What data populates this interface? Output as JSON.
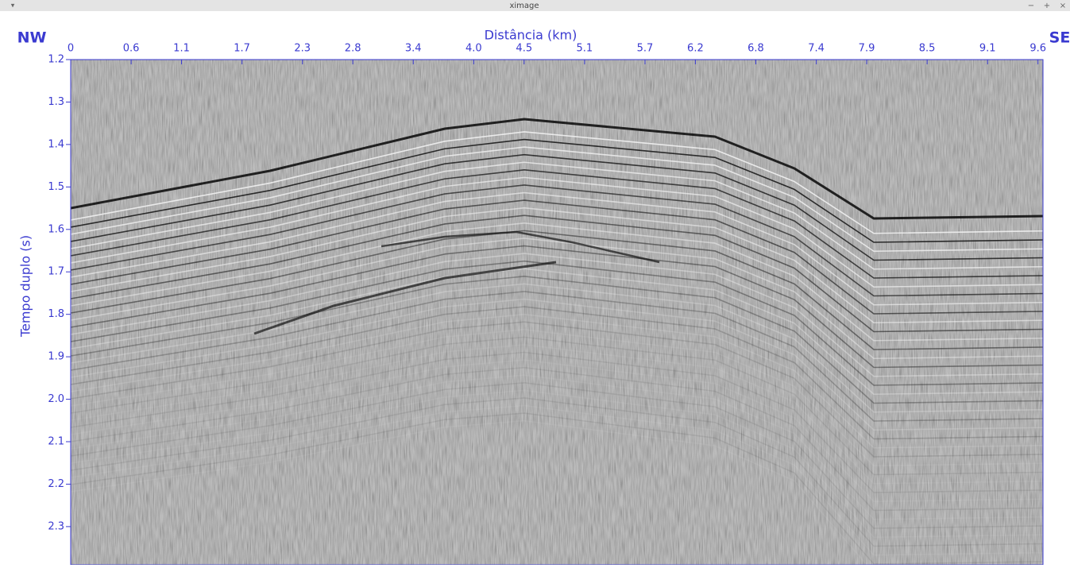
{
  "window": {
    "menu": "▾",
    "title": "ximage",
    "controls": [
      "−",
      "+",
      "×"
    ]
  },
  "chart_data": {
    "type": "image",
    "xlabel": "Distância (km)",
    "ylabel": "Tempo duplo (s)",
    "annotations": [
      "NW",
      "SE"
    ],
    "xlim": [
      0,
      9.65
    ],
    "ylim": [
      1.2,
      2.39
    ],
    "xticks": [
      0,
      0.6,
      1.1,
      1.7,
      2.3,
      2.8,
      3.4,
      {
        "value": 4,
        "label": "4.0"
      },
      4.5,
      5.1,
      5.7,
      6.2,
      6.8,
      7.4,
      7.9,
      8.5,
      9.1,
      9.6
    ],
    "yticks": [
      1.2,
      1.3,
      1.4,
      1.5,
      1.6,
      1.7,
      1.8,
      1.9,
      {
        "value": 2,
        "label": "2.0"
      },
      2.1,
      2.2,
      2.3
    ],
    "axis_color": "#3a3ad0"
  }
}
